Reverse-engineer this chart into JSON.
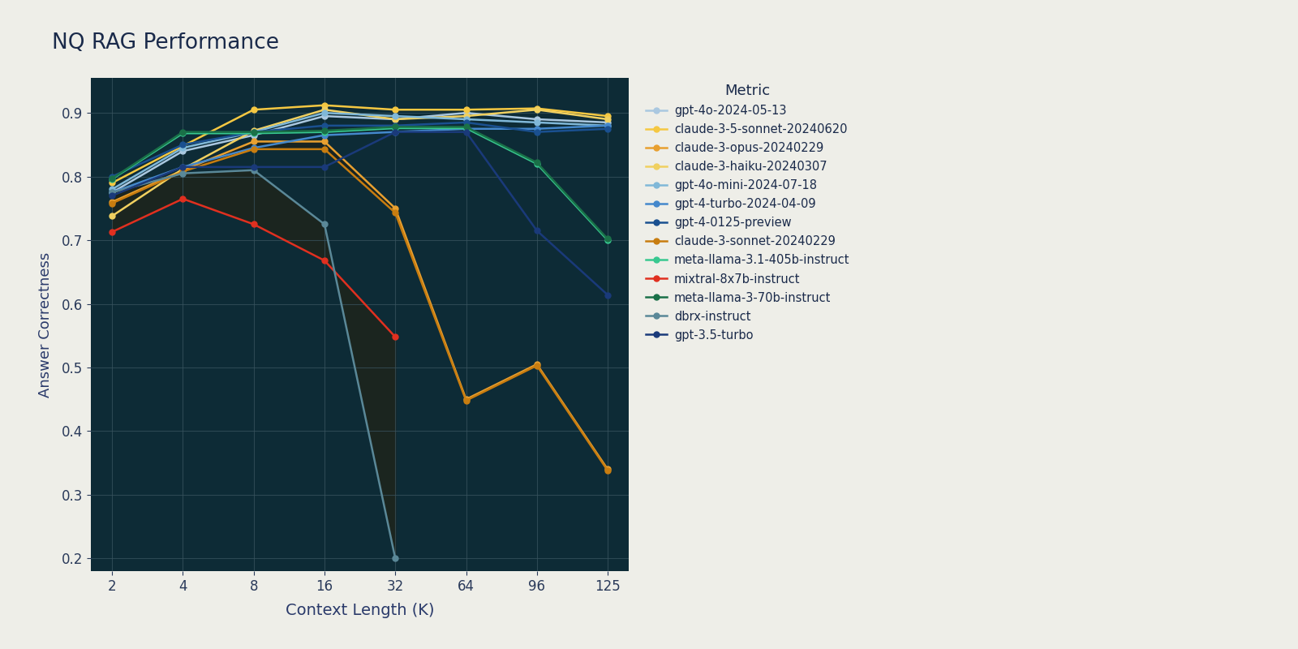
{
  "title": "NQ RAG Performance",
  "xlabel": "Context Length (K)",
  "ylabel": "Answer Correctness",
  "background_color": "#0d2b36",
  "figure_background": "#eeeee8",
  "x_ticks": [
    2,
    4,
    8,
    16,
    32,
    64,
    96,
    125
  ],
  "ylim": [
    0.18,
    0.955
  ],
  "series": [
    {
      "label": "gpt-4o-2024-05-13",
      "color": "#aac8e0",
      "linewidth": 1.8,
      "data": [
        0.775,
        0.84,
        0.865,
        0.895,
        0.89,
        0.9,
        0.89,
        0.885
      ]
    },
    {
      "label": "claude-3-5-sonnet-20240620",
      "color": "#f5c842",
      "linewidth": 1.8,
      "data": [
        0.79,
        0.848,
        0.905,
        0.912,
        0.905,
        0.905,
        0.907,
        0.895
      ]
    },
    {
      "label": "claude-3-opus-20240229",
      "color": "#e8a030",
      "linewidth": 1.8,
      "data": [
        0.76,
        0.81,
        0.855,
        0.855,
        0.75,
        0.45,
        0.505,
        0.34
      ]
    },
    {
      "label": "claude-3-haiku-20240307",
      "color": "#f0d060",
      "linewidth": 1.8,
      "data": [
        0.738,
        0.812,
        0.872,
        0.905,
        0.89,
        0.895,
        0.905,
        0.89
      ]
    },
    {
      "label": "gpt-4o-mini-2024-07-18",
      "color": "#80b8d8",
      "linewidth": 1.8,
      "data": [
        0.78,
        0.845,
        0.87,
        0.9,
        0.895,
        0.89,
        0.885,
        0.88
      ]
    },
    {
      "label": "gpt-4-turbo-2024-04-09",
      "color": "#4488cc",
      "linewidth": 1.8,
      "data": [
        0.775,
        0.815,
        0.845,
        0.865,
        0.87,
        0.875,
        0.875,
        0.88
      ]
    },
    {
      "label": "gpt-4-0125-preview",
      "color": "#1a5090",
      "linewidth": 1.8,
      "data": [
        0.8,
        0.85,
        0.87,
        0.88,
        0.88,
        0.885,
        0.87,
        0.875
      ]
    },
    {
      "label": "claude-3-sonnet-20240229",
      "color": "#c87d10",
      "linewidth": 1.8,
      "data": [
        0.758,
        0.808,
        0.843,
        0.843,
        0.743,
        0.448,
        0.503,
        0.338
      ]
    },
    {
      "label": "meta-llama-3.1-405b-instruct",
      "color": "#38c890",
      "linewidth": 1.8,
      "data": [
        0.796,
        0.868,
        0.868,
        0.87,
        0.876,
        0.876,
        0.82,
        0.7
      ]
    },
    {
      "label": "mixtral-8x7b-instruct",
      "color": "#e03020",
      "linewidth": 1.8,
      "data": [
        0.713,
        0.765,
        0.725,
        0.668,
        0.548,
        null,
        null,
        null
      ]
    },
    {
      "label": "meta-llama-3-70b-instruct",
      "color": "#1a7048",
      "linewidth": 1.8,
      "data": [
        0.797,
        0.87,
        0.87,
        0.872,
        0.878,
        0.878,
        0.822,
        0.702
      ]
    },
    {
      "label": "dbrx-instruct",
      "color": "#5a8898",
      "linewidth": 1.8,
      "data": [
        0.775,
        0.805,
        0.81,
        0.725,
        0.2,
        null,
        null,
        null
      ]
    },
    {
      "label": "gpt-3.5-turbo",
      "color": "#1a3a7a",
      "linewidth": 1.8,
      "data": [
        0.77,
        0.815,
        0.815,
        0.815,
        0.87,
        0.87,
        0.715,
        0.614
      ]
    }
  ],
  "fill_regions": [
    {
      "series_a": "mixtral-8x7b-instruct",
      "series_b": "dbrx-instruct",
      "color": "#2a200a",
      "alpha": 0.5
    },
    {
      "series_a": "claude-3-sonnet-20240229",
      "series_b": "claude-3-opus-20240229",
      "color": "#2a1a05",
      "alpha": 0.4
    }
  ]
}
